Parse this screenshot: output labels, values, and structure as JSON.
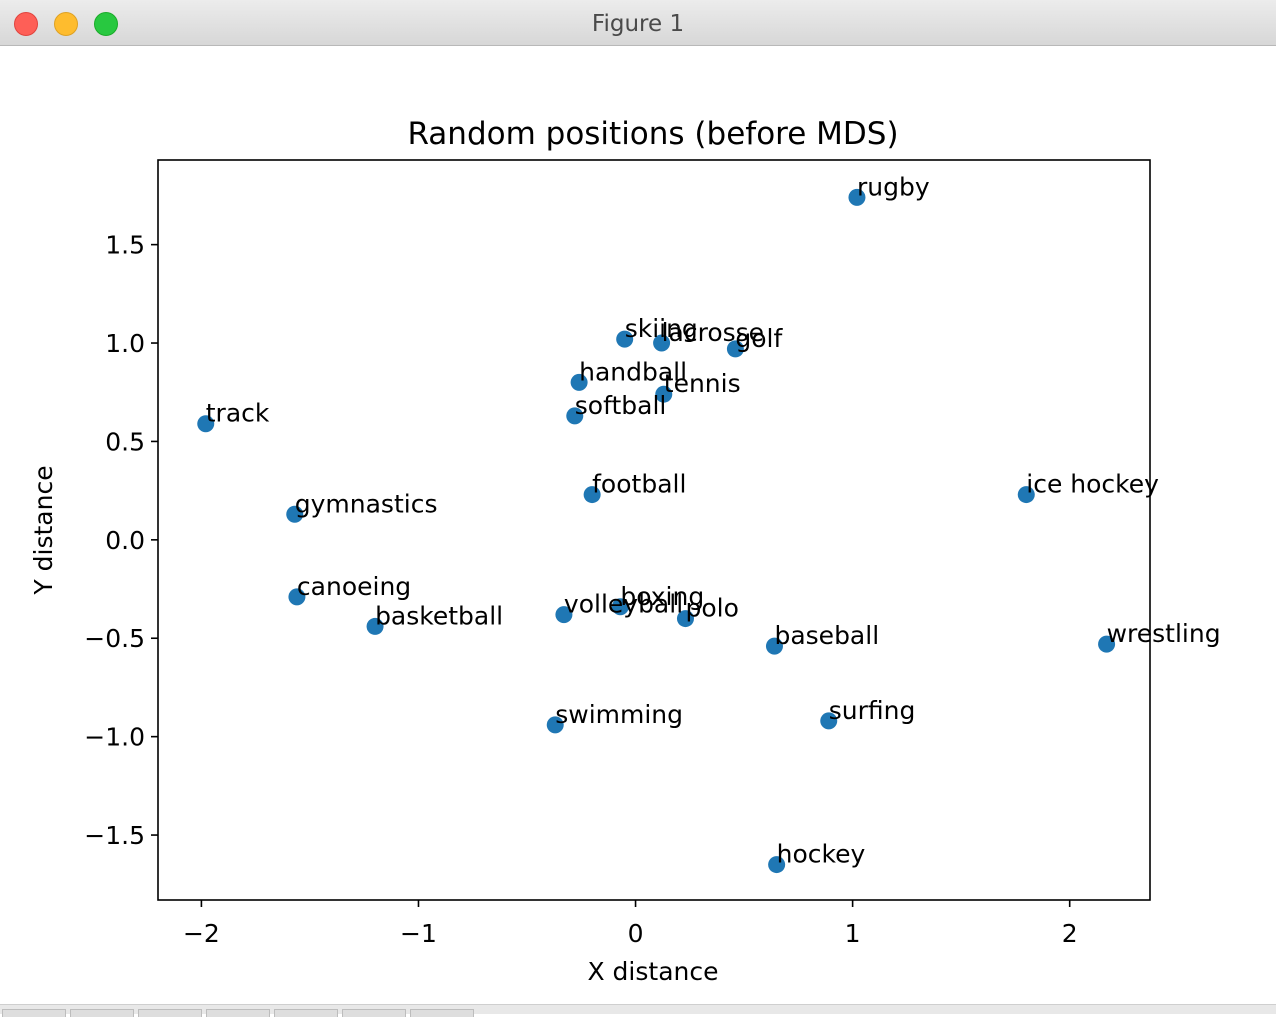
{
  "window": {
    "title": "Figure 1"
  },
  "chart_data": {
    "type": "scatter",
    "title": "Random positions (before MDS)",
    "xlabel": "X distance",
    "ylabel": "Y distance",
    "xlim": [
      -2.2,
      2.37
    ],
    "ylim": [
      -1.83,
      1.93
    ],
    "xticks": [
      {
        "value": -2,
        "label": "−2"
      },
      {
        "value": -1,
        "label": "−1"
      },
      {
        "value": 0,
        "label": "0"
      },
      {
        "value": 1,
        "label": "1"
      },
      {
        "value": 2,
        "label": "2"
      }
    ],
    "yticks": [
      {
        "value": -1.5,
        "label": "−1.5"
      },
      {
        "value": -1.0,
        "label": "−1.0"
      },
      {
        "value": -0.5,
        "label": "−0.5"
      },
      {
        "value": 0.0,
        "label": "0.0"
      },
      {
        "value": 0.5,
        "label": "0.5"
      },
      {
        "value": 1.0,
        "label": "1.0"
      },
      {
        "value": 1.5,
        "label": "1.5"
      }
    ],
    "grid": false,
    "marker_color": "#1f77b4",
    "points": [
      {
        "label": "rugby",
        "x": 1.02,
        "y": 1.74
      },
      {
        "label": "skiing",
        "x": -0.05,
        "y": 1.02
      },
      {
        "label": "lacrosse",
        "x": 0.12,
        "y": 1.0
      },
      {
        "label": "golf",
        "x": 0.46,
        "y": 0.97
      },
      {
        "label": "handball",
        "x": -0.26,
        "y": 0.8
      },
      {
        "label": "tennis",
        "x": 0.13,
        "y": 0.74
      },
      {
        "label": "softball",
        "x": -0.28,
        "y": 0.63
      },
      {
        "label": "track",
        "x": -1.98,
        "y": 0.59
      },
      {
        "label": "football",
        "x": -0.2,
        "y": 0.23
      },
      {
        "label": "ice hockey",
        "x": 1.8,
        "y": 0.23
      },
      {
        "label": "gymnastics",
        "x": -1.57,
        "y": 0.13
      },
      {
        "label": "canoeing",
        "x": -1.56,
        "y": -0.29
      },
      {
        "label": "basketball",
        "x": -1.2,
        "y": -0.44
      },
      {
        "label": "volleyball",
        "x": -0.33,
        "y": -0.38
      },
      {
        "label": "boxing",
        "x": -0.07,
        "y": -0.34
      },
      {
        "label": "polo",
        "x": 0.23,
        "y": -0.4
      },
      {
        "label": "baseball",
        "x": 0.64,
        "y": -0.54
      },
      {
        "label": "wrestling",
        "x": 2.17,
        "y": -0.53
      },
      {
        "label": "swimming",
        "x": -0.37,
        "y": -0.94
      },
      {
        "label": "surfing",
        "x": 0.89,
        "y": -0.92
      },
      {
        "label": "hockey",
        "x": 0.65,
        "y": -1.65
      }
    ]
  }
}
